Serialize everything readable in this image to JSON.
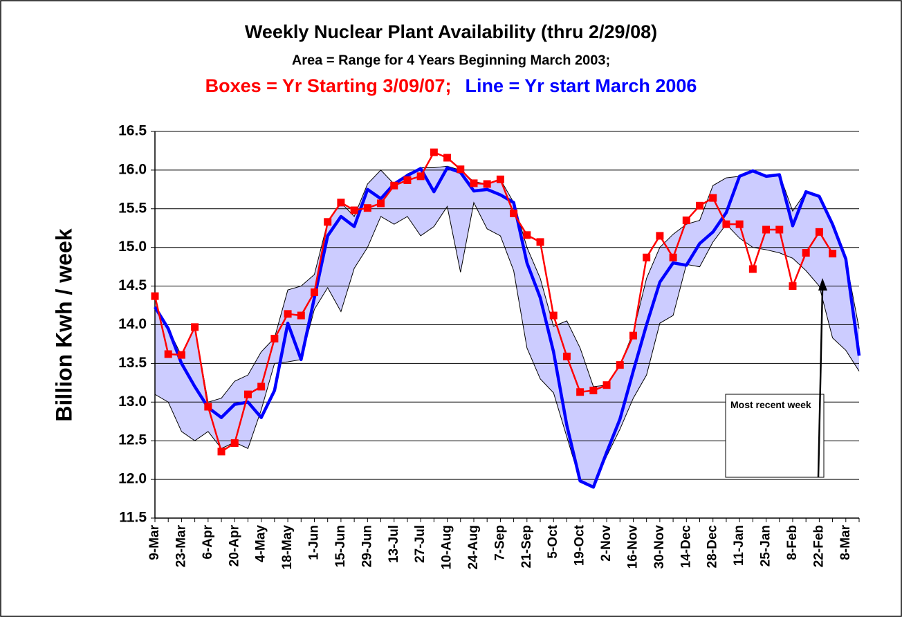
{
  "chart_data": {
    "type": "line",
    "title": "Weekly Nuclear Plant Availability (thru 2/29/08)",
    "subtitle": "Area = Range for 4 Years Beginning March 2003;",
    "subtitle_boxes": "Boxes = Yr Starting 3/09/07;",
    "subtitle_line": "Line = Yr start March 2006",
    "ylabel": "Billion Kwh / week",
    "annotation": "Most recent week",
    "categories": [
      "9-Mar",
      null,
      "23-Mar",
      null,
      "6-Apr",
      null,
      "20-Apr",
      null,
      "4-May",
      null,
      "18-May",
      null,
      "1-Jun",
      null,
      "15-Jun",
      null,
      "29-Jun",
      null,
      "13-Jul",
      null,
      "27-Jul",
      null,
      "10-Aug",
      null,
      "24-Aug",
      null,
      "7-Sep",
      null,
      "21-Sep",
      null,
      "5-Oct",
      null,
      "19-Oct",
      null,
      "2-Nov",
      null,
      "16-Nov",
      null,
      "30-Nov",
      null,
      "14-Dec",
      null,
      "28-Dec",
      null,
      "11-Jan",
      null,
      "25-Jan",
      null,
      "8-Feb",
      null,
      "22-Feb",
      null,
      "8-Mar",
      null
    ],
    "ylim": [
      11.5,
      16.5
    ],
    "yticks": [
      11.5,
      {
        "value": 12,
        "label": "12.0"
      },
      12.5,
      {
        "value": 13,
        "label": "13.0"
      },
      13.5,
      {
        "value": 14,
        "label": "14.0"
      },
      14.5,
      {
        "value": 15,
        "label": "15.0"
      },
      15.5,
      {
        "value": 16,
        "label": "16.0"
      },
      16.5
    ],
    "grid": true,
    "range": {
      "color": "#ccccff",
      "low": [
        13.1,
        13.0,
        12.62,
        12.5,
        12.62,
        12.4,
        12.48,
        12.4,
        12.9,
        13.5,
        13.52,
        13.55,
        14.2,
        14.48,
        14.17,
        14.73,
        15.0,
        15.4,
        15.3,
        15.4,
        15.15,
        15.27,
        15.53,
        14.68,
        15.58,
        15.24,
        15.15,
        14.7,
        13.7,
        13.3,
        13.12,
        12.55,
        11.98,
        11.9,
        12.3,
        12.65,
        13.05,
        13.35,
        14.02,
        14.12,
        14.78,
        14.75,
        15.07,
        15.3,
        15.12,
        15.0,
        14.97,
        14.93,
        14.86,
        14.7,
        14.5,
        13.83,
        13.67,
        13.4
      ],
      "high": [
        14.23,
        13.95,
        13.6,
        13.97,
        13.0,
        13.05,
        13.27,
        13.35,
        13.65,
        13.83,
        14.45,
        14.5,
        14.65,
        15.33,
        15.58,
        15.4,
        15.82,
        16.0,
        15.82,
        15.95,
        16.03,
        16.03,
        16.05,
        16.0,
        15.85,
        15.82,
        15.88,
        15.58,
        15.0,
        14.6,
        13.98,
        14.05,
        13.7,
        13.2,
        13.22,
        13.48,
        13.9,
        14.6,
        15.0,
        15.17,
        15.3,
        15.35,
        15.8,
        15.9,
        15.92,
        16.0,
        15.92,
        15.95,
        15.47,
        15.72,
        15.66,
        15.3,
        14.85,
        13.95
      ]
    },
    "series": [
      {
        "color": "#0000ff",
        "marker": "none",
        "values": [
          14.23,
          13.95,
          13.5,
          13.2,
          12.93,
          12.8,
          12.97,
          13.0,
          12.8,
          13.15,
          14.02,
          13.55,
          14.35,
          15.15,
          15.4,
          15.27,
          15.75,
          15.63,
          15.82,
          15.93,
          16.02,
          15.72,
          16.03,
          15.97,
          15.73,
          15.75,
          15.68,
          15.58,
          14.8,
          14.35,
          13.65,
          12.7,
          11.98,
          11.9,
          12.35,
          12.78,
          13.4,
          14.0,
          14.55,
          14.8,
          14.77,
          15.05,
          15.2,
          15.45,
          15.92,
          15.99,
          15.92,
          15.94,
          15.28,
          15.72,
          15.66,
          15.3,
          14.85,
          13.6
        ]
      },
      {
        "color": "#ff0000",
        "marker": "square",
        "values": [
          14.37,
          13.62,
          13.61,
          13.97,
          12.94,
          12.36,
          12.47,
          13.1,
          13.2,
          13.82,
          14.14,
          14.12,
          14.42,
          15.33,
          15.58,
          15.48,
          15.51,
          15.57,
          15.8,
          15.87,
          15.92,
          16.23,
          16.16,
          16.01,
          15.83,
          15.82,
          15.88,
          15.44,
          15.16,
          15.07,
          14.12,
          13.59,
          13.13,
          13.15,
          13.22,
          13.48,
          13.86,
          14.87,
          15.15,
          14.87,
          15.35,
          15.54,
          15.64,
          15.3,
          15.3,
          14.72,
          15.23,
          15.23,
          14.5,
          14.93,
          15.2,
          14.92,
          null,
          null
        ]
      }
    ]
  }
}
